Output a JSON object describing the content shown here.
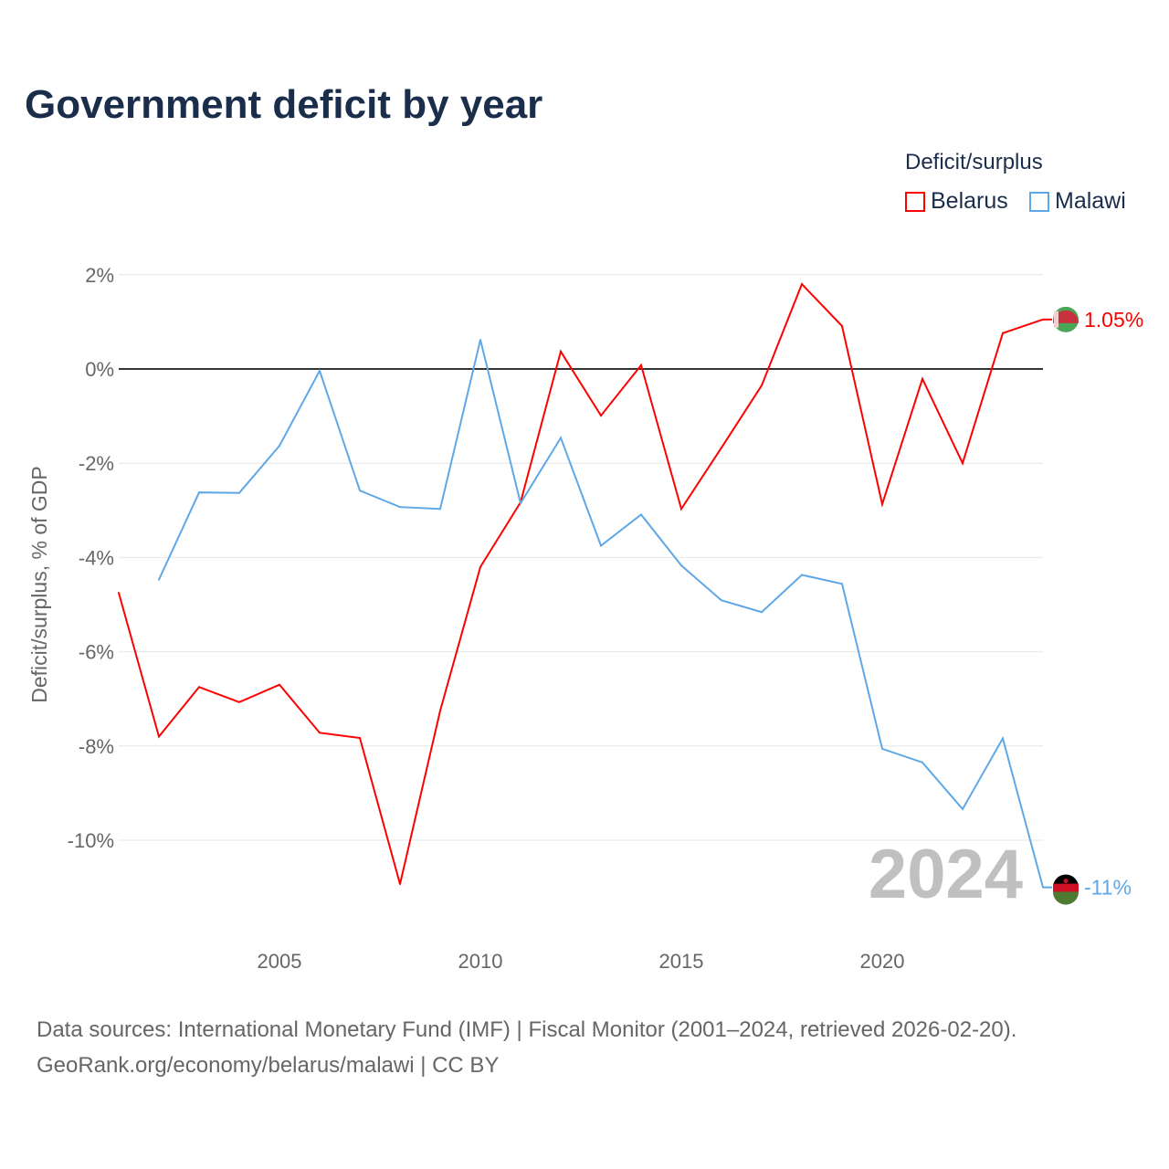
{
  "title": "Government deficit by year",
  "legend": {
    "title": "Deficit/surplus",
    "items": [
      {
        "name": "Belarus",
        "color": "#ff0000"
      },
      {
        "name": "Malawi",
        "color": "#5ea8e8"
      }
    ]
  },
  "footer": {
    "line1": "Data sources: International Monetary Fund (IMF) | Fiscal Monitor (2001–2024, retrieved 2026-02-20).",
    "line2": "GeoRank.org/economy/belarus/malawi | CC BY"
  },
  "chart_data": {
    "type": "line",
    "title": "Government deficit by year",
    "ylabel": "Deficit/surplus, % of GDP",
    "xlabel": "",
    "year_watermark": "2024",
    "xlim": [
      2001,
      2024
    ],
    "ylim": [
      -12,
      2.5
    ],
    "x_ticks": [
      2005,
      2010,
      2015,
      2020
    ],
    "y_ticks": [
      2,
      0,
      -2,
      -4,
      -6,
      -8,
      -10
    ],
    "y_tick_labels": [
      "2%",
      "0%",
      "-2%",
      "-4%",
      "-6%",
      "-8%",
      "-10%"
    ],
    "grid": true,
    "legend_position": "top-right",
    "series": [
      {
        "name": "Belarus",
        "color": "#ff0000",
        "end_label": "1.05%",
        "x": [
          2001,
          2002,
          2003,
          2004,
          2005,
          2006,
          2007,
          2008,
          2009,
          2010,
          2011,
          2012,
          2013,
          2014,
          2015,
          2016,
          2017,
          2018,
          2019,
          2020,
          2021,
          2022,
          2023,
          2024
        ],
        "values": [
          -4.75,
          -7.8,
          -6.75,
          -7.07,
          -6.7,
          -7.72,
          -7.83,
          -10.93,
          -7.25,
          -4.2,
          -2.83,
          0.37,
          -0.99,
          0.08,
          -2.97,
          -1.67,
          -0.35,
          1.8,
          0.91,
          -2.87,
          -0.21,
          -2.0,
          0.76,
          1.05
        ]
      },
      {
        "name": "Malawi",
        "color": "#5ea8e8",
        "end_label": "-11%",
        "x": [
          2002,
          2003,
          2004,
          2005,
          2006,
          2007,
          2008,
          2009,
          2010,
          2011,
          2012,
          2013,
          2014,
          2015,
          2016,
          2017,
          2018,
          2019,
          2020,
          2021,
          2022,
          2023,
          2024
        ],
        "values": [
          -4.47,
          -2.62,
          -2.63,
          -1.63,
          -0.04,
          -2.58,
          -2.93,
          -2.97,
          0.62,
          -2.85,
          -1.46,
          -3.75,
          -3.09,
          -4.17,
          -4.91,
          -5.16,
          -4.37,
          -4.56,
          -8.06,
          -8.35,
          -9.34,
          -7.84,
          -11.0
        ]
      }
    ]
  }
}
